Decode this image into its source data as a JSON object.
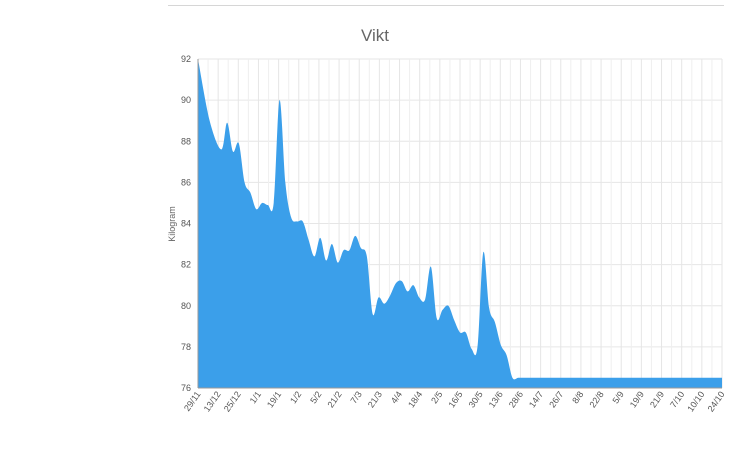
{
  "chart_data": {
    "type": "area",
    "title": "Vikt",
    "ylabel": "Kilogram",
    "xlabel": "",
    "ylim": [
      76,
      92
    ],
    "yticks": [
      76,
      78,
      80,
      82,
      84,
      86,
      88,
      90,
      92
    ],
    "grid": true,
    "legend": "none",
    "fill_color": "#3b9fea",
    "categories": [
      "29/11",
      "13/12",
      "25/12",
      "1/1",
      "19/1",
      "1/2",
      "5/2",
      "21/2",
      "7/3",
      "21/3",
      "4/4",
      "18/4",
      "2/5",
      "16/5",
      "30/5",
      "13/6",
      "28/6",
      "14/7",
      "26/7",
      "8/8",
      "22/8",
      "5/9",
      "19/9",
      "21/9",
      "7/10",
      "10/10",
      "24/10"
    ],
    "x": [
      0,
      2,
      4,
      5,
      6,
      7,
      8,
      9,
      10,
      11,
      12,
      13,
      14,
      15,
      16,
      17,
      18,
      19,
      20,
      21,
      22,
      23,
      24,
      25,
      26,
      27,
      28,
      29,
      30,
      31,
      32,
      33,
      34,
      35,
      36,
      37,
      38,
      39,
      40,
      41,
      42,
      43,
      44,
      45,
      46,
      47,
      48,
      49,
      50,
      51,
      52,
      53,
      54,
      55,
      56,
      57,
      58,
      59,
      60,
      61,
      62,
      63,
      64,
      65,
      66,
      67,
      68,
      69,
      70,
      71,
      72,
      73,
      74,
      75,
      76,
      77,
      78,
      79,
      80,
      81,
      82,
      83,
      84,
      85,
      86,
      87,
      88,
      89,
      90
    ],
    "values": [
      92.0,
      89.0,
      87.6,
      88.9,
      87.5,
      87.9,
      86.0,
      85.5,
      84.7,
      85.0,
      84.9,
      85.0,
      90.0,
      86.0,
      84.3,
      84.1,
      84.1,
      83.2,
      82.4,
      83.3,
      82.2,
      83.0,
      82.1,
      82.7,
      82.7,
      83.4,
      82.8,
      82.4,
      79.6,
      80.4,
      80.1,
      80.5,
      81.1,
      81.2,
      80.7,
      81.0,
      80.4,
      80.3,
      81.9,
      79.4,
      79.8,
      80.0,
      79.3,
      78.7,
      78.7,
      77.9,
      78.0,
      82.6,
      79.9,
      79.2,
      78.1,
      77.6,
      76.5,
      76.5,
      76.5,
      76.5,
      76.5,
      76.5,
      76.5,
      76.5,
      76.5,
      76.5,
      76.5,
      76.5,
      76.5,
      76.5,
      76.5,
      76.5,
      76.5,
      76.5,
      76.5,
      76.5,
      76.5,
      76.5,
      76.5,
      76.5,
      76.5,
      76.5,
      76.5,
      76.5,
      76.5,
      76.5,
      76.5,
      76.5,
      76.5,
      76.5,
      76.5,
      76.5,
      76.5
    ]
  }
}
